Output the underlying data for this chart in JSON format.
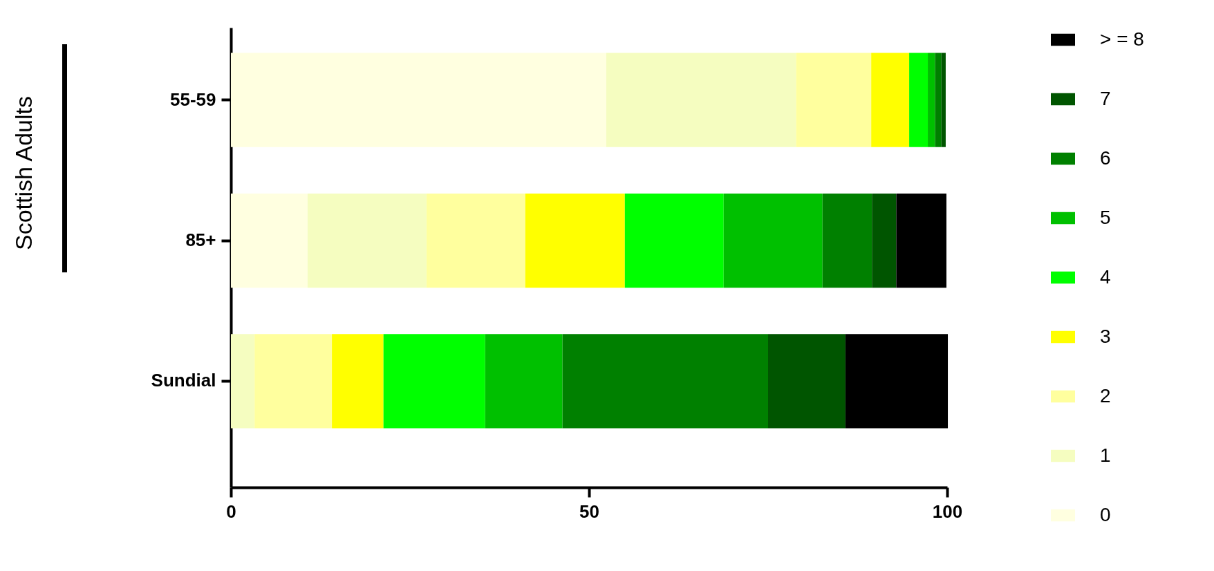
{
  "chart_data": {
    "type": "bar",
    "orientation": "horizontal",
    "stacked": true,
    "ylabel": "Scottish Adults",
    "categories": [
      "55-59",
      "85+",
      "Sundial"
    ],
    "xlim": [
      0,
      100
    ],
    "xticks": [
      0,
      50,
      100
    ],
    "grid": false,
    "legend": "right",
    "series": [
      {
        "name": "0",
        "color": "#ffffe0",
        "values": [
          52.4,
          10.7,
          0
        ]
      },
      {
        "name": "1",
        "color": "#f5fdc0",
        "values": [
          26.5,
          16.6,
          3.3
        ]
      },
      {
        "name": "2",
        "color": "#ffff9e",
        "values": [
          10.5,
          13.8,
          10.8
        ]
      },
      {
        "name": "3",
        "color": "#ffff00",
        "values": [
          5.3,
          13.9,
          7.2
        ]
      },
      {
        "name": "4",
        "color": "#00ff00",
        "values": [
          2.6,
          13.8,
          14.2
        ]
      },
      {
        "name": "5",
        "color": "#00c000",
        "values": [
          1.0,
          13.8,
          10.8
        ]
      },
      {
        "name": "6",
        "color": "#008000",
        "values": [
          0.9,
          6.9,
          28.7
        ]
      },
      {
        "name": "7",
        "color": "#005500",
        "values": [
          0.6,
          3.4,
          10.8
        ]
      },
      {
        "name": "> = 8",
        "color": "#000000",
        "values": [
          0,
          7.0,
          14.3
        ]
      }
    ]
  }
}
